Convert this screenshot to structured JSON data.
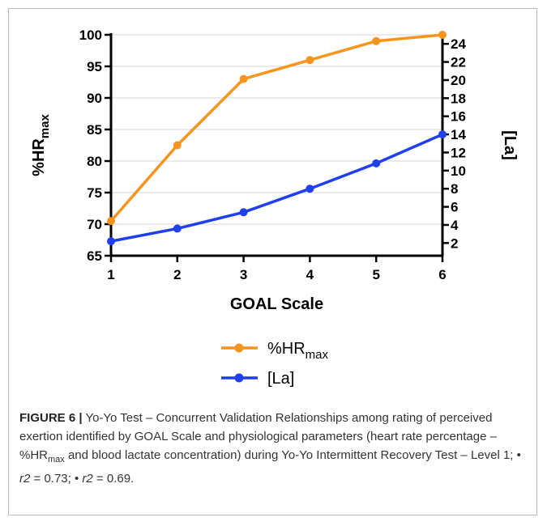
{
  "chart_data": {
    "type": "line",
    "x": [
      1,
      2,
      3,
      4,
      5,
      6
    ],
    "xlabel": "GOAL Scale",
    "xlim": [
      1,
      6
    ],
    "x_ticks": [
      "1",
      "2",
      "3",
      "4",
      "5",
      "6"
    ],
    "y_left": {
      "label_base": "%HR",
      "label_sub": "max",
      "lim": [
        65,
        100
      ],
      "ticks": [
        "65",
        "70",
        "75",
        "80",
        "85",
        "90",
        "95",
        "100"
      ]
    },
    "y_right": {
      "label": "[La]",
      "lim": [
        0.6,
        25
      ],
      "ticks": [
        "2",
        "4",
        "6",
        "8",
        "10",
        "12",
        "14",
        "16",
        "18",
        "20",
        "22",
        "24"
      ]
    },
    "grid": "horizontal",
    "series": [
      {
        "name_base": "%HR",
        "name_sub": "max",
        "axis": "left",
        "color": "#f7941d",
        "values": [
          70.5,
          82.5,
          93,
          96,
          99,
          100
        ]
      },
      {
        "name": "[La]",
        "axis": "right",
        "color": "#1f3ff0",
        "values": [
          2.2,
          3.6,
          5.4,
          8.0,
          10.8,
          14.0
        ]
      }
    ],
    "legend_position": "bottom-center"
  },
  "caption": {
    "label": "FIGURE 6 |",
    "text_1": " Yo-Yo Test – Concurrent Validation Relationships among rating of perceived exertion identified by GOAL Scale and physiological parameters (heart rate percentage – %HR",
    "sub": "max",
    "text_2": " and blood lactate concentration) during Yo-Yo Intermittent Recovery Test – Level 1; ",
    "bullet_1": "•",
    "r_1": "r2",
    "eq_1": " = 0.73; ",
    "bullet_2": "•",
    "r_2": "r2",
    "eq_2": " = 0.69."
  }
}
